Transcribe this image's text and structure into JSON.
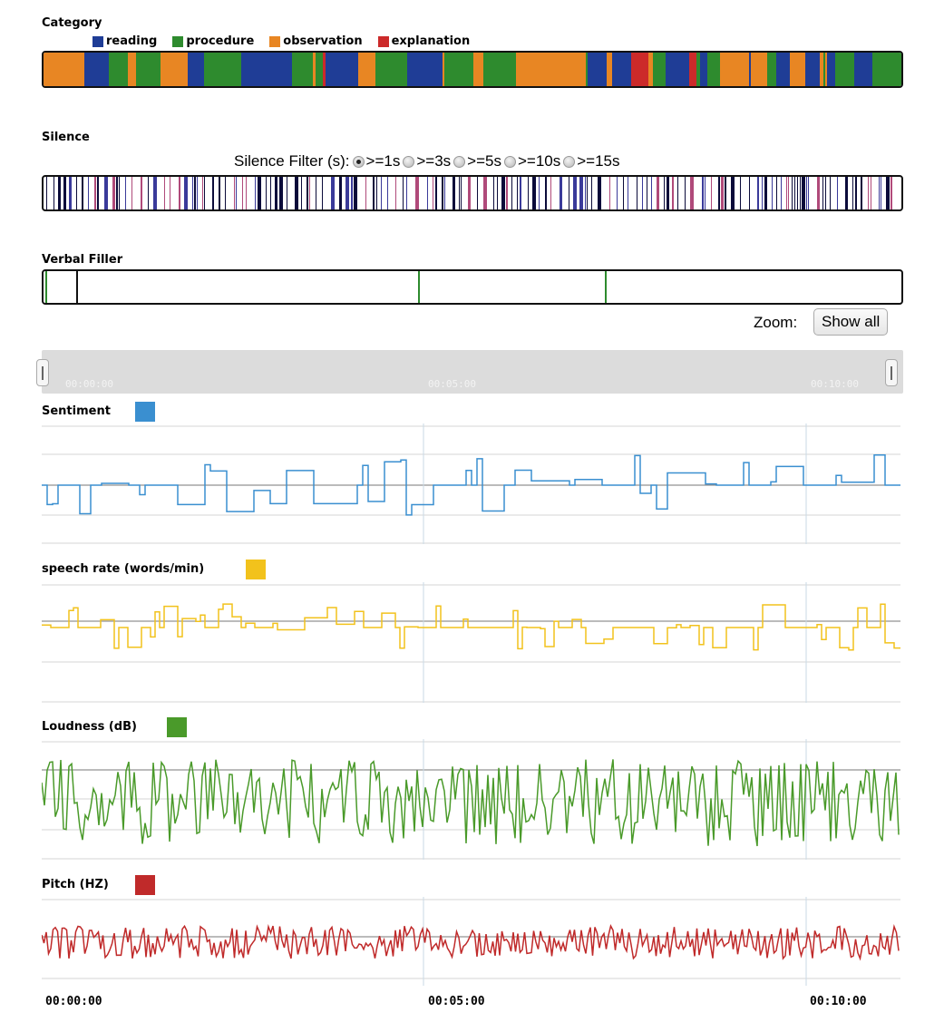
{
  "category": {
    "title": "Category",
    "legend": [
      {
        "label": "reading",
        "color": "#1f3d96"
      },
      {
        "label": "procedure",
        "color": "#2e8b2e"
      },
      {
        "label": "observation",
        "color": "#e88623"
      },
      {
        "label": "explanation",
        "color": "#cc2a2a"
      }
    ]
  },
  "silence": {
    "title": "Silence",
    "filter_label": "Silence Filter (s):",
    "options": [
      {
        "label": ">=1s",
        "checked": true
      },
      {
        "label": ">=3s",
        "checked": false
      },
      {
        "label": ">=5s",
        "checked": false
      },
      {
        "label": ">=10s",
        "checked": false
      },
      {
        "label": ">=15s",
        "checked": false
      }
    ]
  },
  "verbal_filler": {
    "title": "Verbal Filler",
    "marker_color": "#2e8b2e"
  },
  "zoom": {
    "label": "Zoom:",
    "button": "Show all"
  },
  "navigator": {
    "ticks": [
      "00:00:00",
      "00:05:00",
      "00:10:00"
    ]
  },
  "charts": {
    "sentiment": {
      "title": "Sentiment",
      "color": "#3a8fd0"
    },
    "speech_rate": {
      "title": "speech rate (words/min)",
      "color": "#f2c21c"
    },
    "loudness": {
      "title": "Loudness (dB)",
      "color": "#4a9a2a"
    },
    "pitch": {
      "title": "Pitch (HZ)",
      "color": "#c02a2a"
    }
  },
  "time_axis": {
    "ticks": [
      "00:00:00",
      "00:05:00",
      "00:10:00"
    ]
  }
}
